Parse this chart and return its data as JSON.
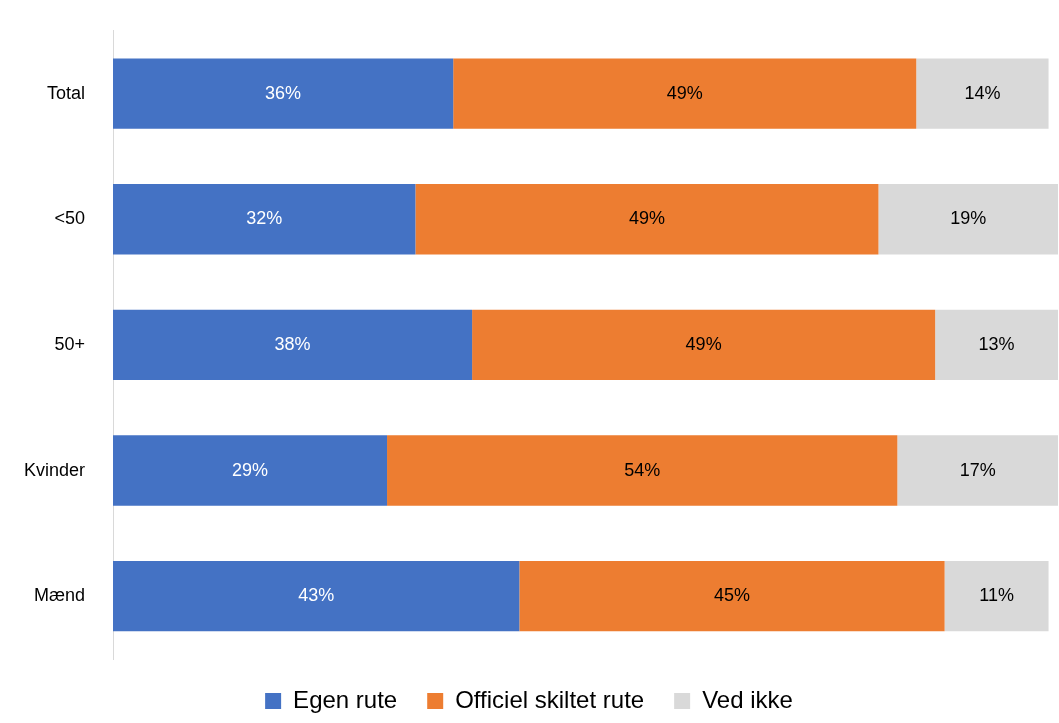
{
  "chart_data": {
    "type": "bar",
    "orientation": "horizontal",
    "stacked": true,
    "categories": [
      "Total",
      "<50",
      "50+",
      "Kvinder",
      "Mænd"
    ],
    "series": [
      {
        "name": "Egen rute",
        "color": "#4472c4",
        "values": [
          36,
          32,
          38,
          29,
          43
        ],
        "value_labels": [
          "36%",
          "32%",
          "38%",
          "29%",
          "43%"
        ]
      },
      {
        "name": "Officiel skiltet rute",
        "color": "#ed7d31",
        "values": [
          49,
          49,
          49,
          54,
          45
        ],
        "value_labels": [
          "49%",
          "49%",
          "49%",
          "54%",
          "45%"
        ]
      },
      {
        "name": "Ved ikke",
        "color": "#d9d9d9",
        "values": [
          14,
          19,
          13,
          17,
          11
        ],
        "value_labels": [
          "14%",
          "19%",
          "13%",
          "17%",
          "11%"
        ]
      }
    ],
    "tick_labels": "y",
    "legend": "bottom"
  }
}
